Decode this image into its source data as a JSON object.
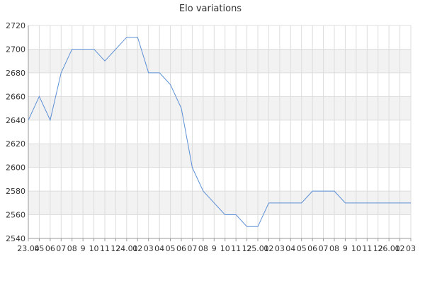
{
  "chart_data": {
    "type": "line",
    "title": "Elo variations",
    "xlabel": "",
    "ylabel": "",
    "ylim": [
      2540,
      2720
    ],
    "y_ticks": [
      2540,
      2560,
      2580,
      2600,
      2620,
      2640,
      2660,
      2680,
      2700,
      2720
    ],
    "categories": [
      "23.04",
      "05",
      "06",
      "07",
      "08",
      "9",
      "10",
      "11",
      "12",
      "24.01",
      "02",
      "03",
      "04",
      "05",
      "06",
      "07",
      "08",
      "9",
      "10",
      "11",
      "12",
      "25.01",
      "02",
      "03",
      "04",
      "05",
      "06",
      "07",
      "08",
      "9",
      "10",
      "11",
      "12",
      "26.01",
      "02",
      "03"
    ],
    "series": [
      {
        "values": [
          2640,
          2660,
          2640,
          2680,
          2700,
          2700,
          2700,
          2690,
          2700,
          2710,
          2710,
          2680,
          2680,
          2670,
          2650,
          2600,
          2580,
          2570,
          2560,
          2560,
          2550,
          2550,
          2570,
          2570,
          2570,
          2570,
          2580,
          2580,
          2580,
          2570,
          2570,
          2570,
          2570,
          2570,
          2570,
          2570
        ]
      }
    ],
    "grid": true,
    "alternating_bands": true,
    "colors": {
      "line": "#5b8fd6",
      "band": "#f2f2f2",
      "grid": "#dddddd",
      "axis": "#999999"
    }
  }
}
